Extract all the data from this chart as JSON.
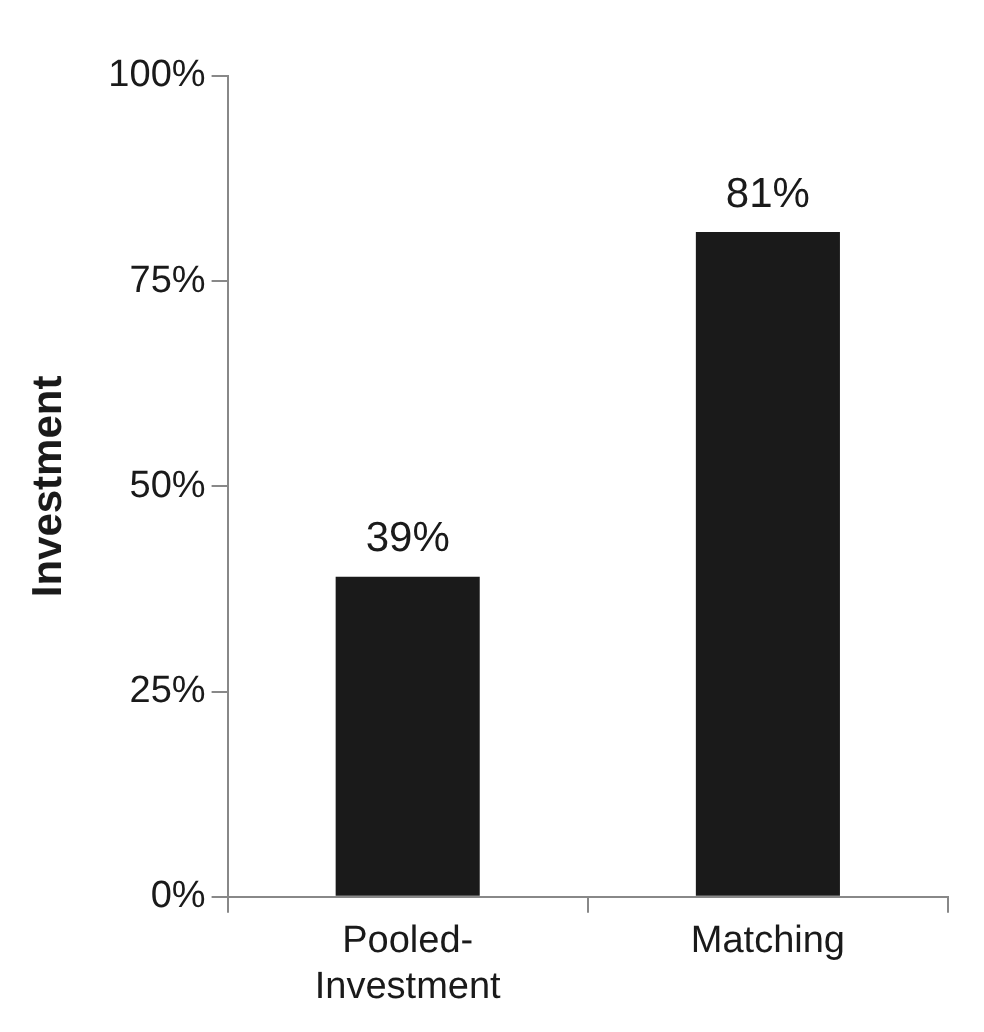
{
  "chart_data": {
    "type": "bar",
    "ylabel": "Investment",
    "categories": [
      "Pooled-Investment",
      "Matching"
    ],
    "values": [
      39,
      81
    ],
    "color": "#1a1a1a",
    "value_labels": [
      "39%",
      "81%"
    ],
    "ylim": [
      0,
      100
    ],
    "yticks": [
      {
        "value": 0,
        "label": "0%"
      },
      {
        "value": 25,
        "label": "25%"
      },
      {
        "value": 50,
        "label": "50%"
      },
      {
        "value": 75,
        "label": "75%"
      },
      {
        "value": 100,
        "label": "100%"
      }
    ],
    "grid": false,
    "legend": false
  }
}
